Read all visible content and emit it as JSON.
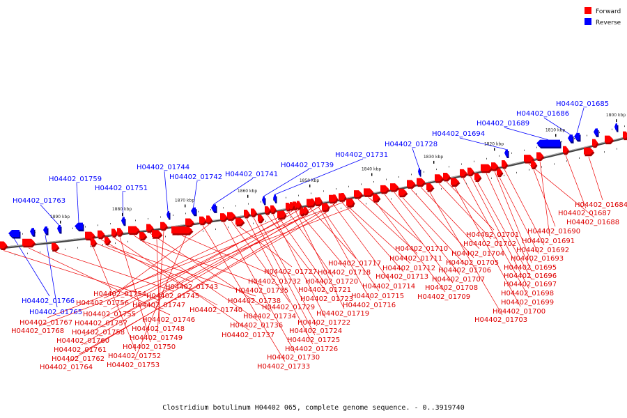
{
  "caption": "Clostridium botulinum H04402 065, complete genome sequence. - 0..3919740",
  "legend": {
    "forward_label": "Forward",
    "reverse_label": "Reverse",
    "forward_color": "#ff0000",
    "reverse_color": "#0000ff"
  },
  "colors": {
    "forward": "#ff0000",
    "forward_shade": "#aa0000",
    "reverse": "#0000ff",
    "reverse_shade": "#000088",
    "backbone": "#777777"
  },
  "scale": {
    "ticks": [
      {
        "label": "1890 kbp"
      },
      {
        "label": "1880 kbp"
      },
      {
        "label": "1870 kbp"
      },
      {
        "label": "1860 kbp"
      },
      {
        "label": "1850 kbp"
      },
      {
        "label": "1840 kbp"
      },
      {
        "label": "1830 kbp"
      },
      {
        "label": "1820 kbp"
      },
      {
        "label": "1810 kbp"
      },
      {
        "label": "1800 kbp"
      }
    ]
  },
  "reverse_labels": [
    "H04402_01685",
    "H04402_01686",
    "H04402_01689",
    "H04402_01694",
    "H04402_01728",
    "H04402_01731",
    "H04402_01739",
    "H04402_01741",
    "H04402_01742",
    "H04402_01744",
    "H04402_01751",
    "H04402_01759",
    "H04402_01763",
    "H04402_01765",
    "H04402_01766"
  ],
  "forward_labels": [
    "H04402_01684",
    "H04402_01687",
    "H04402_01688",
    "H04402_01690",
    "H04402_01691",
    "H04402_01692",
    "H04402_01693",
    "H04402_01695",
    "H04402_01696",
    "H04402_01697",
    "H04402_01698",
    "H04402_01699",
    "H04402_01700",
    "H04402_01701",
    "H04402_01702",
    "H04402_01703",
    "H04402_01704",
    "H04402_01705",
    "H04402_01706",
    "H04402_01707",
    "H04402_01708",
    "H04402_01709",
    "H04402_01710",
    "H04402_01711",
    "H04402_01712",
    "H04402_01713",
    "H04402_01714",
    "H04402_01715",
    "H04402_01716",
    "H04402_01717",
    "H04402_01718",
    "H04402_01719",
    "H04402_01720",
    "H04402_01721",
    "H04402_01722",
    "H04402_01723",
    "H04402_01724",
    "H04402_01725",
    "H04402_01726",
    "H04402_01727",
    "H04402_01729",
    "H04402_01730",
    "H04402_01732",
    "H04402_01733",
    "H04402_01734",
    "H04402_01735",
    "H04402_01736",
    "H04402_01737",
    "H04402_01738",
    "H04402_01740",
    "H04402_01743",
    "H04402_01745",
    "H04402_01746",
    "H04402_01747",
    "H04402_01748",
    "H04402_01749",
    "H04402_01750",
    "H04402_01752",
    "H04402_01753",
    "H04402_01754",
    "H04402_01755",
    "H04402_01756",
    "H04402_01757",
    "H04402_01758",
    "H04402_01760",
    "H04402_01761",
    "H04402_01762",
    "H04402_01764",
    "H04402_01767",
    "H04402_01768"
  ]
}
